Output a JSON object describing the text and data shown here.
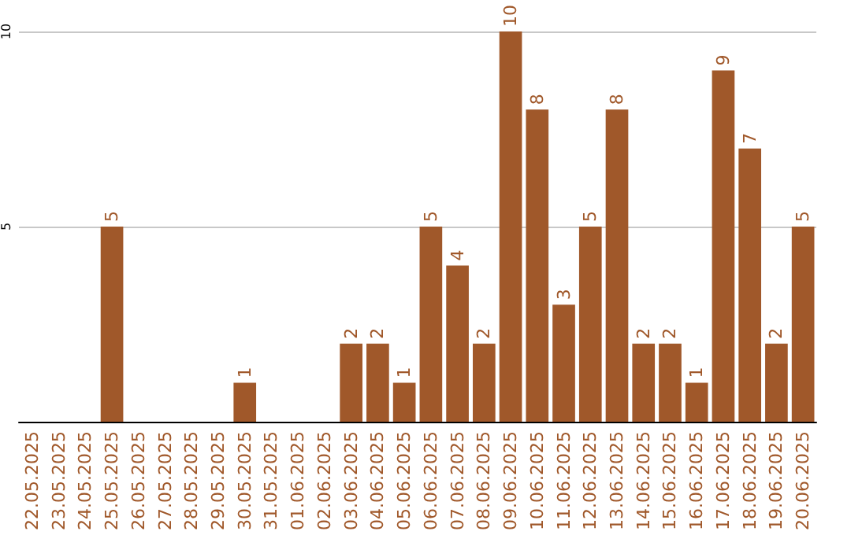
{
  "chart_data": {
    "type": "bar",
    "categories": [
      "22.05.2025",
      "23.05.2025",
      "24.05.2025",
      "25.05.2025",
      "26.05.2025",
      "27.05.2025",
      "28.05.2025",
      "29.05.2025",
      "30.05.2025",
      "31.05.2025",
      "01.06.2025",
      "02.06.2025",
      "03.06.2025",
      "04.06.2025",
      "05.06.2025",
      "06.06.2025",
      "07.06.2025",
      "08.06.2025",
      "09.06.2025",
      "10.06.2025",
      "11.06.2025",
      "12.06.2025",
      "13.06.2025",
      "14.06.2025",
      "15.06.2025",
      "16.06.2025",
      "17.06.2025",
      "18.06.2025",
      "19.06.2025",
      "20.06.2025"
    ],
    "values": [
      null,
      null,
      null,
      5,
      null,
      null,
      null,
      null,
      1,
      null,
      null,
      null,
      2,
      2,
      1,
      5,
      4,
      2,
      10,
      8,
      3,
      5,
      8,
      2,
      2,
      1,
      9,
      7,
      2,
      5
    ],
    "color": "#a0582a",
    "ylim": [
      0,
      10
    ],
    "yticks": [
      5,
      10
    ],
    "grid": "y",
    "data_labels": true
  }
}
